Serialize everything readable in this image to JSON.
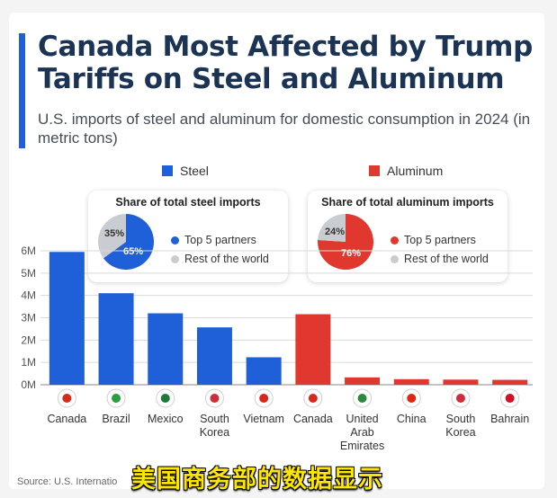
{
  "header": {
    "title": "Canada Most Affected by Trump Tariffs on Steel and Aluminum",
    "subtitle": "U.S. imports of steel and aluminum for domestic consumption in 2024 (in metric tons)"
  },
  "legend": {
    "steel_label": "Steel",
    "aluminum_label": "Aluminum"
  },
  "colors": {
    "steel": "#1f5fd8",
    "aluminum": "#e0382f",
    "rest": "#c9ccd1",
    "title": "#1b3354"
  },
  "steel_share": {
    "title": "Share of total steel imports",
    "top5_label": "Top 5 partners",
    "rest_label": "Rest of the world",
    "top5_pct_text": "65%",
    "rest_pct_text": "35%",
    "top5_value": 65,
    "rest_value": 35
  },
  "aluminum_share": {
    "title": "Share of total aluminum imports",
    "top5_label": "Top 5 partners",
    "rest_label": "Rest of the world",
    "top5_pct_text": "76%",
    "rest_pct_text": "24%",
    "top5_value": 76,
    "rest_value": 24
  },
  "chart_data": {
    "type": "bar",
    "ylim": [
      0,
      6000000
    ],
    "y_ticks": [
      "0M",
      "1M",
      "2M",
      "3M",
      "4M",
      "5M",
      "6M"
    ],
    "y_tick_values": [
      0,
      1000000,
      2000000,
      3000000,
      4000000,
      5000000,
      6000000
    ],
    "grid": true,
    "series": [
      {
        "name": "Steel",
        "categories": [
          "Canada",
          "Brazil",
          "Mexico",
          "South Korea",
          "Vietnam"
        ],
        "category_lines": [
          [
            "Canada"
          ],
          [
            "Brazil"
          ],
          [
            "Mexico"
          ],
          [
            "South",
            "Korea"
          ],
          [
            "Vietnam"
          ]
        ],
        "flag_icons": [
          "canada-flag-icon",
          "brazil-flag-icon",
          "mexico-flag-icon",
          "south-korea-flag-icon",
          "vietnam-flag-icon"
        ],
        "values": [
          5950000,
          4100000,
          3200000,
          2570000,
          1230000
        ]
      },
      {
        "name": "Aluminum",
        "categories": [
          "Canada",
          "United Arab Emirates",
          "China",
          "South Korea",
          "Bahrain"
        ],
        "category_lines": [
          [
            "Canada"
          ],
          [
            "United",
            "Arab",
            "Emirates"
          ],
          [
            "China"
          ],
          [
            "South",
            "Korea"
          ],
          [
            "Bahrain"
          ]
        ],
        "flag_icons": [
          "canada-flag-icon",
          "uae-flag-icon",
          "china-flag-icon",
          "south-korea-flag-icon",
          "bahrain-flag-icon"
        ],
        "values": [
          3160000,
          330000,
          250000,
          230000,
          220000
        ]
      }
    ]
  },
  "source_text": "Source: U.S. Internatio",
  "caption_text": "美国商务部的数据显示"
}
